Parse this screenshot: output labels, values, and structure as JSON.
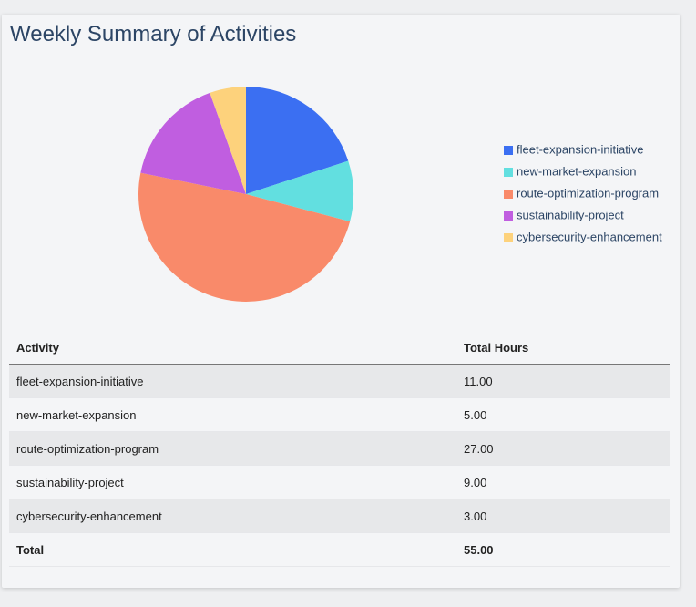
{
  "chart_data": {
    "type": "pie",
    "title": "Weekly Summary of Activities",
    "categories": [
      "fleet-expansion-initiative",
      "new-market-expansion",
      "route-optimization-program",
      "sustainability-project",
      "cybersecurity-enhancement"
    ],
    "values": [
      11,
      5,
      27,
      9,
      3
    ],
    "colors": [
      "#3b6ff2",
      "#62dfe0",
      "#f98a6a",
      "#c05ee0",
      "#fdd27c"
    ],
    "legend": "right"
  },
  "table": {
    "header": [
      "Activity",
      "Total Hours"
    ],
    "rows": [
      [
        "fleet-expansion-initiative",
        "11.00"
      ],
      [
        "new-market-expansion",
        "5.00"
      ],
      [
        "route-optimization-program",
        "27.00"
      ],
      [
        "sustainability-project",
        "9.00"
      ],
      [
        "cybersecurity-enhancement",
        "3.00"
      ]
    ],
    "total": [
      "Total",
      "55.00"
    ]
  }
}
